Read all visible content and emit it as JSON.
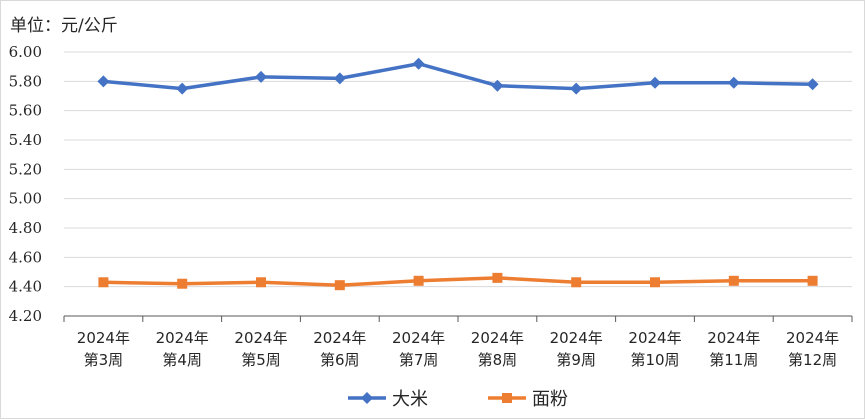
{
  "chart_data": {
    "type": "line",
    "unit_label": "单位：元/公斤",
    "categories": [
      [
        "2024年",
        "第3周"
      ],
      [
        "2024年",
        "第4周"
      ],
      [
        "2024年",
        "第5周"
      ],
      [
        "2024年",
        "第6周"
      ],
      [
        "2024年",
        "第7周"
      ],
      [
        "2024年",
        "第8周"
      ],
      [
        "2024年",
        "第9周"
      ],
      [
        "2024年",
        "第10周"
      ],
      [
        "2024年",
        "第11周"
      ],
      [
        "2024年",
        "第12周"
      ]
    ],
    "yticks": [
      "6.00",
      "5.80",
      "5.60",
      "5.40",
      "5.20",
      "5.00",
      "4.80",
      "4.60",
      "4.40",
      "4.20"
    ],
    "ylim": [
      4.2,
      6.0
    ],
    "grid": true,
    "legend_position": "bottom",
    "series": [
      {
        "name": "大米",
        "color": "#4472c4",
        "marker": "diamond",
        "values": [
          5.8,
          5.75,
          5.83,
          5.82,
          5.92,
          5.77,
          5.75,
          5.79,
          5.79,
          5.78
        ]
      },
      {
        "name": "面粉",
        "color": "#ed7d31",
        "marker": "square",
        "values": [
          4.43,
          4.42,
          4.43,
          4.41,
          4.44,
          4.46,
          4.43,
          4.43,
          4.44,
          4.44
        ]
      }
    ]
  }
}
